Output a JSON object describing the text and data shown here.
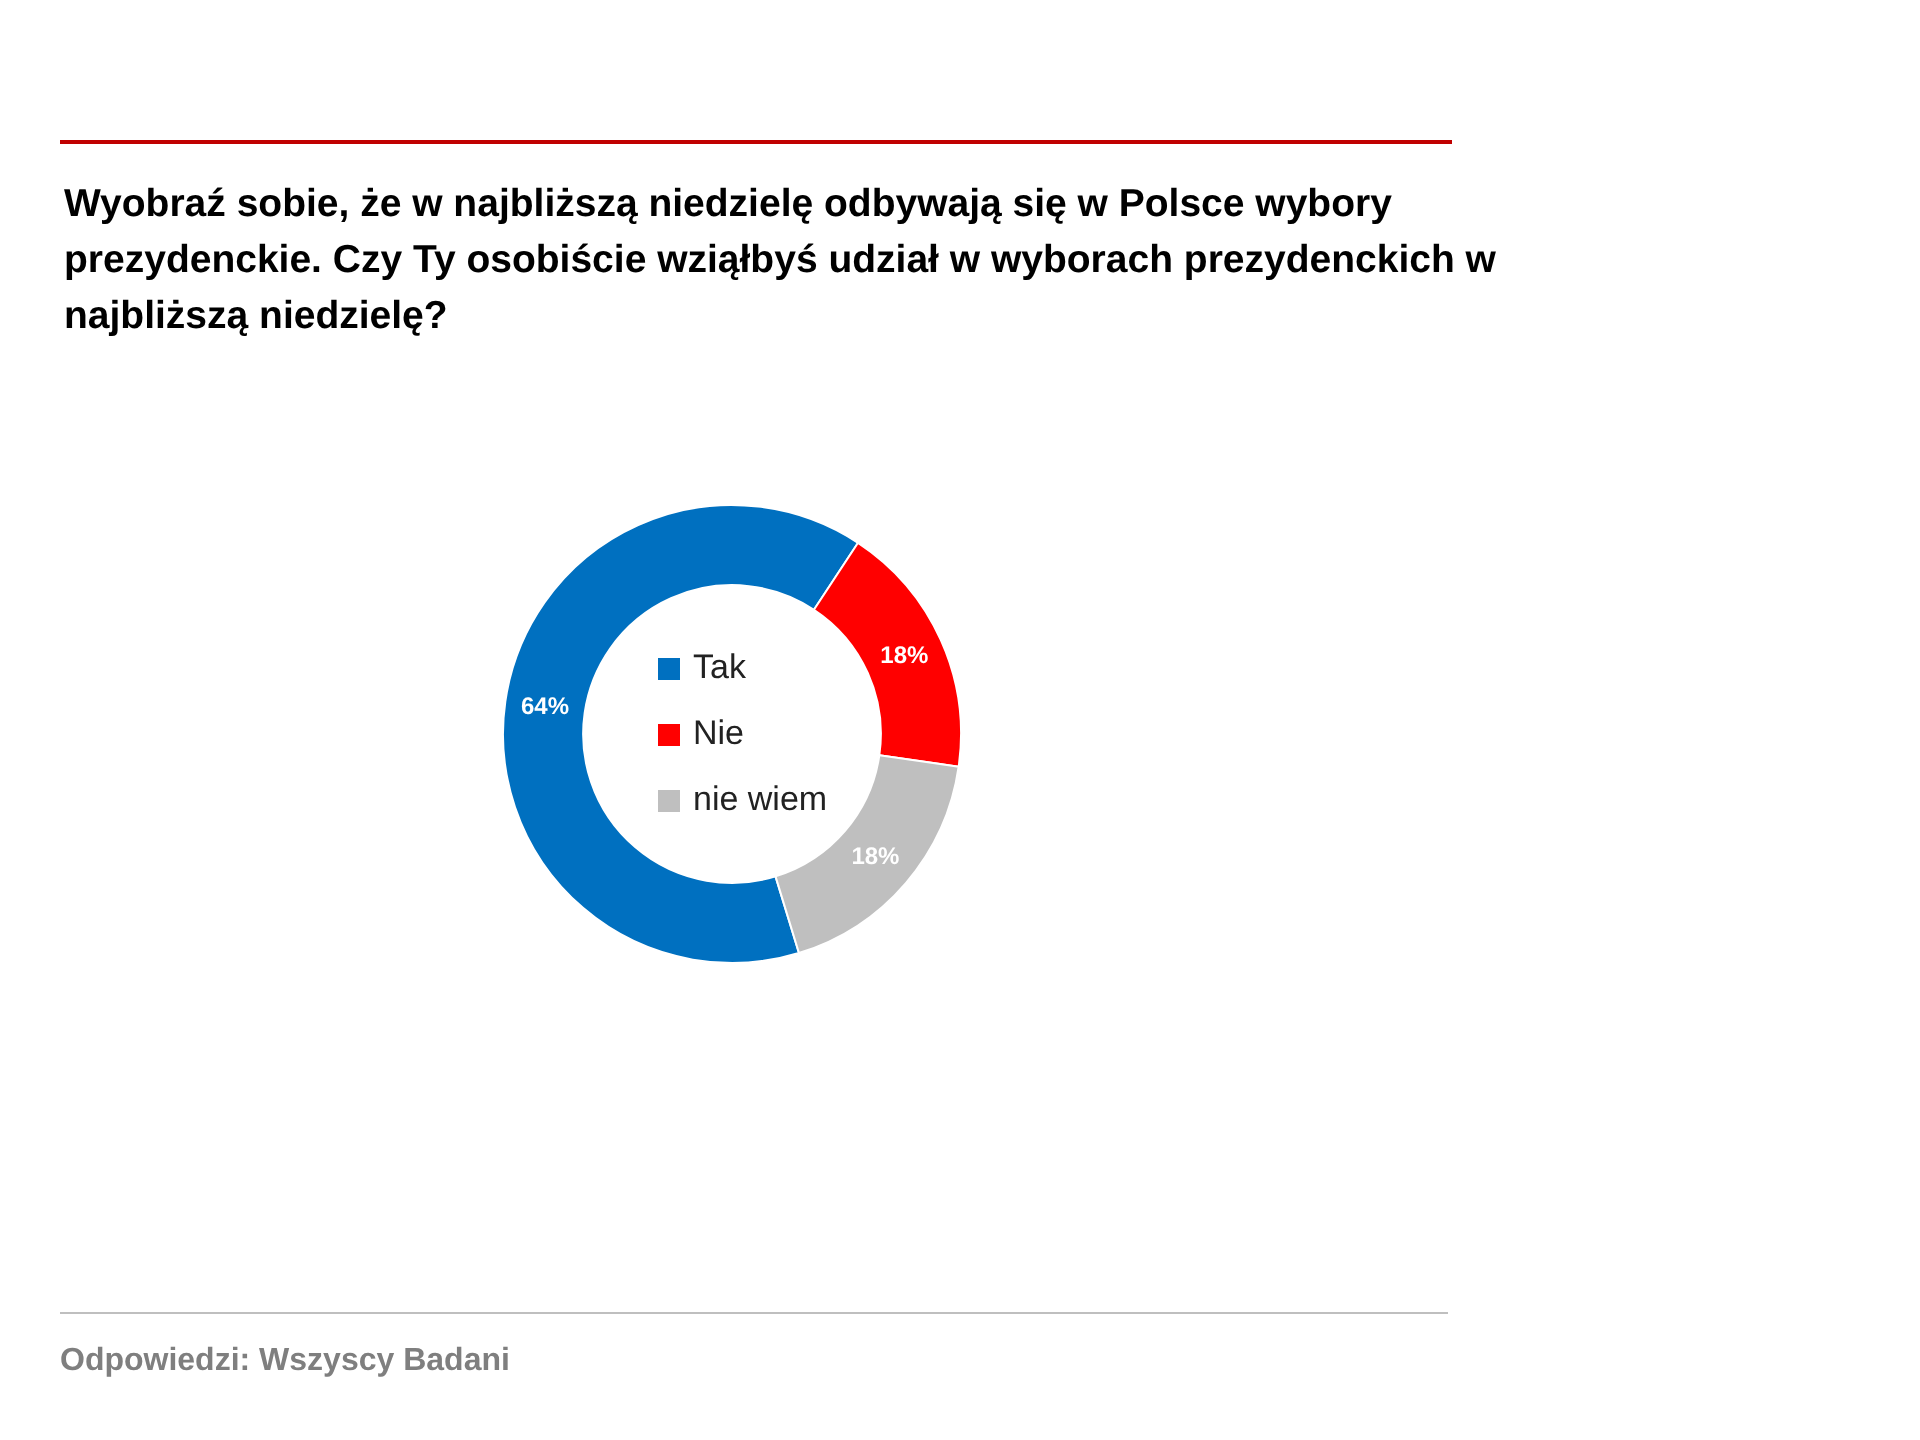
{
  "chart_data": {
    "type": "donut",
    "title": "Wyobraź sobie, że w najbliższą niedzielę odbywają się w Polsce wybory prezydenckie. Czy Ty osobiście wziąłbyś udział w wyborach prezydenckich w najbliższą niedzielę?",
    "categories": [
      "Tak",
      "Nie",
      "nie wiem"
    ],
    "values": [
      64,
      18,
      18
    ],
    "value_labels": [
      "64%",
      "18%",
      "18%"
    ],
    "colors": [
      "#0070c0",
      "#ff0000",
      "#bfbfbf"
    ],
    "legend": "center",
    "annotations": [
      "Odpowiedzi: Wszyscy Badani"
    ]
  }
}
